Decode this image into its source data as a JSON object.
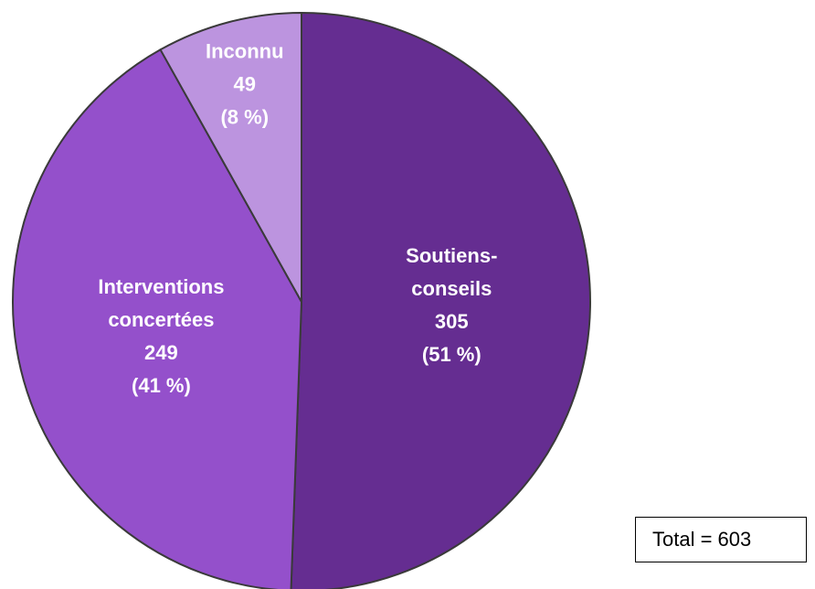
{
  "chart_data": {
    "type": "pie",
    "slices": [
      {
        "label_lines": [
          "Soutiens-",
          "conseils"
        ],
        "value": 305,
        "value_text": "305",
        "percent_text": "(51 %)",
        "color": "#652d91"
      },
      {
        "label_lines": [
          "Interventions",
          "concertées"
        ],
        "value": 249,
        "value_text": "249",
        "percent_text": "(41 %)",
        "color": "#9450cb"
      },
      {
        "label_lines": [
          "Inconnu"
        ],
        "value": 49,
        "value_text": "49",
        "percent_text": "(8 %)",
        "color": "#bc94df"
      }
    ]
  },
  "total_box": {
    "text": "Total = 603"
  }
}
